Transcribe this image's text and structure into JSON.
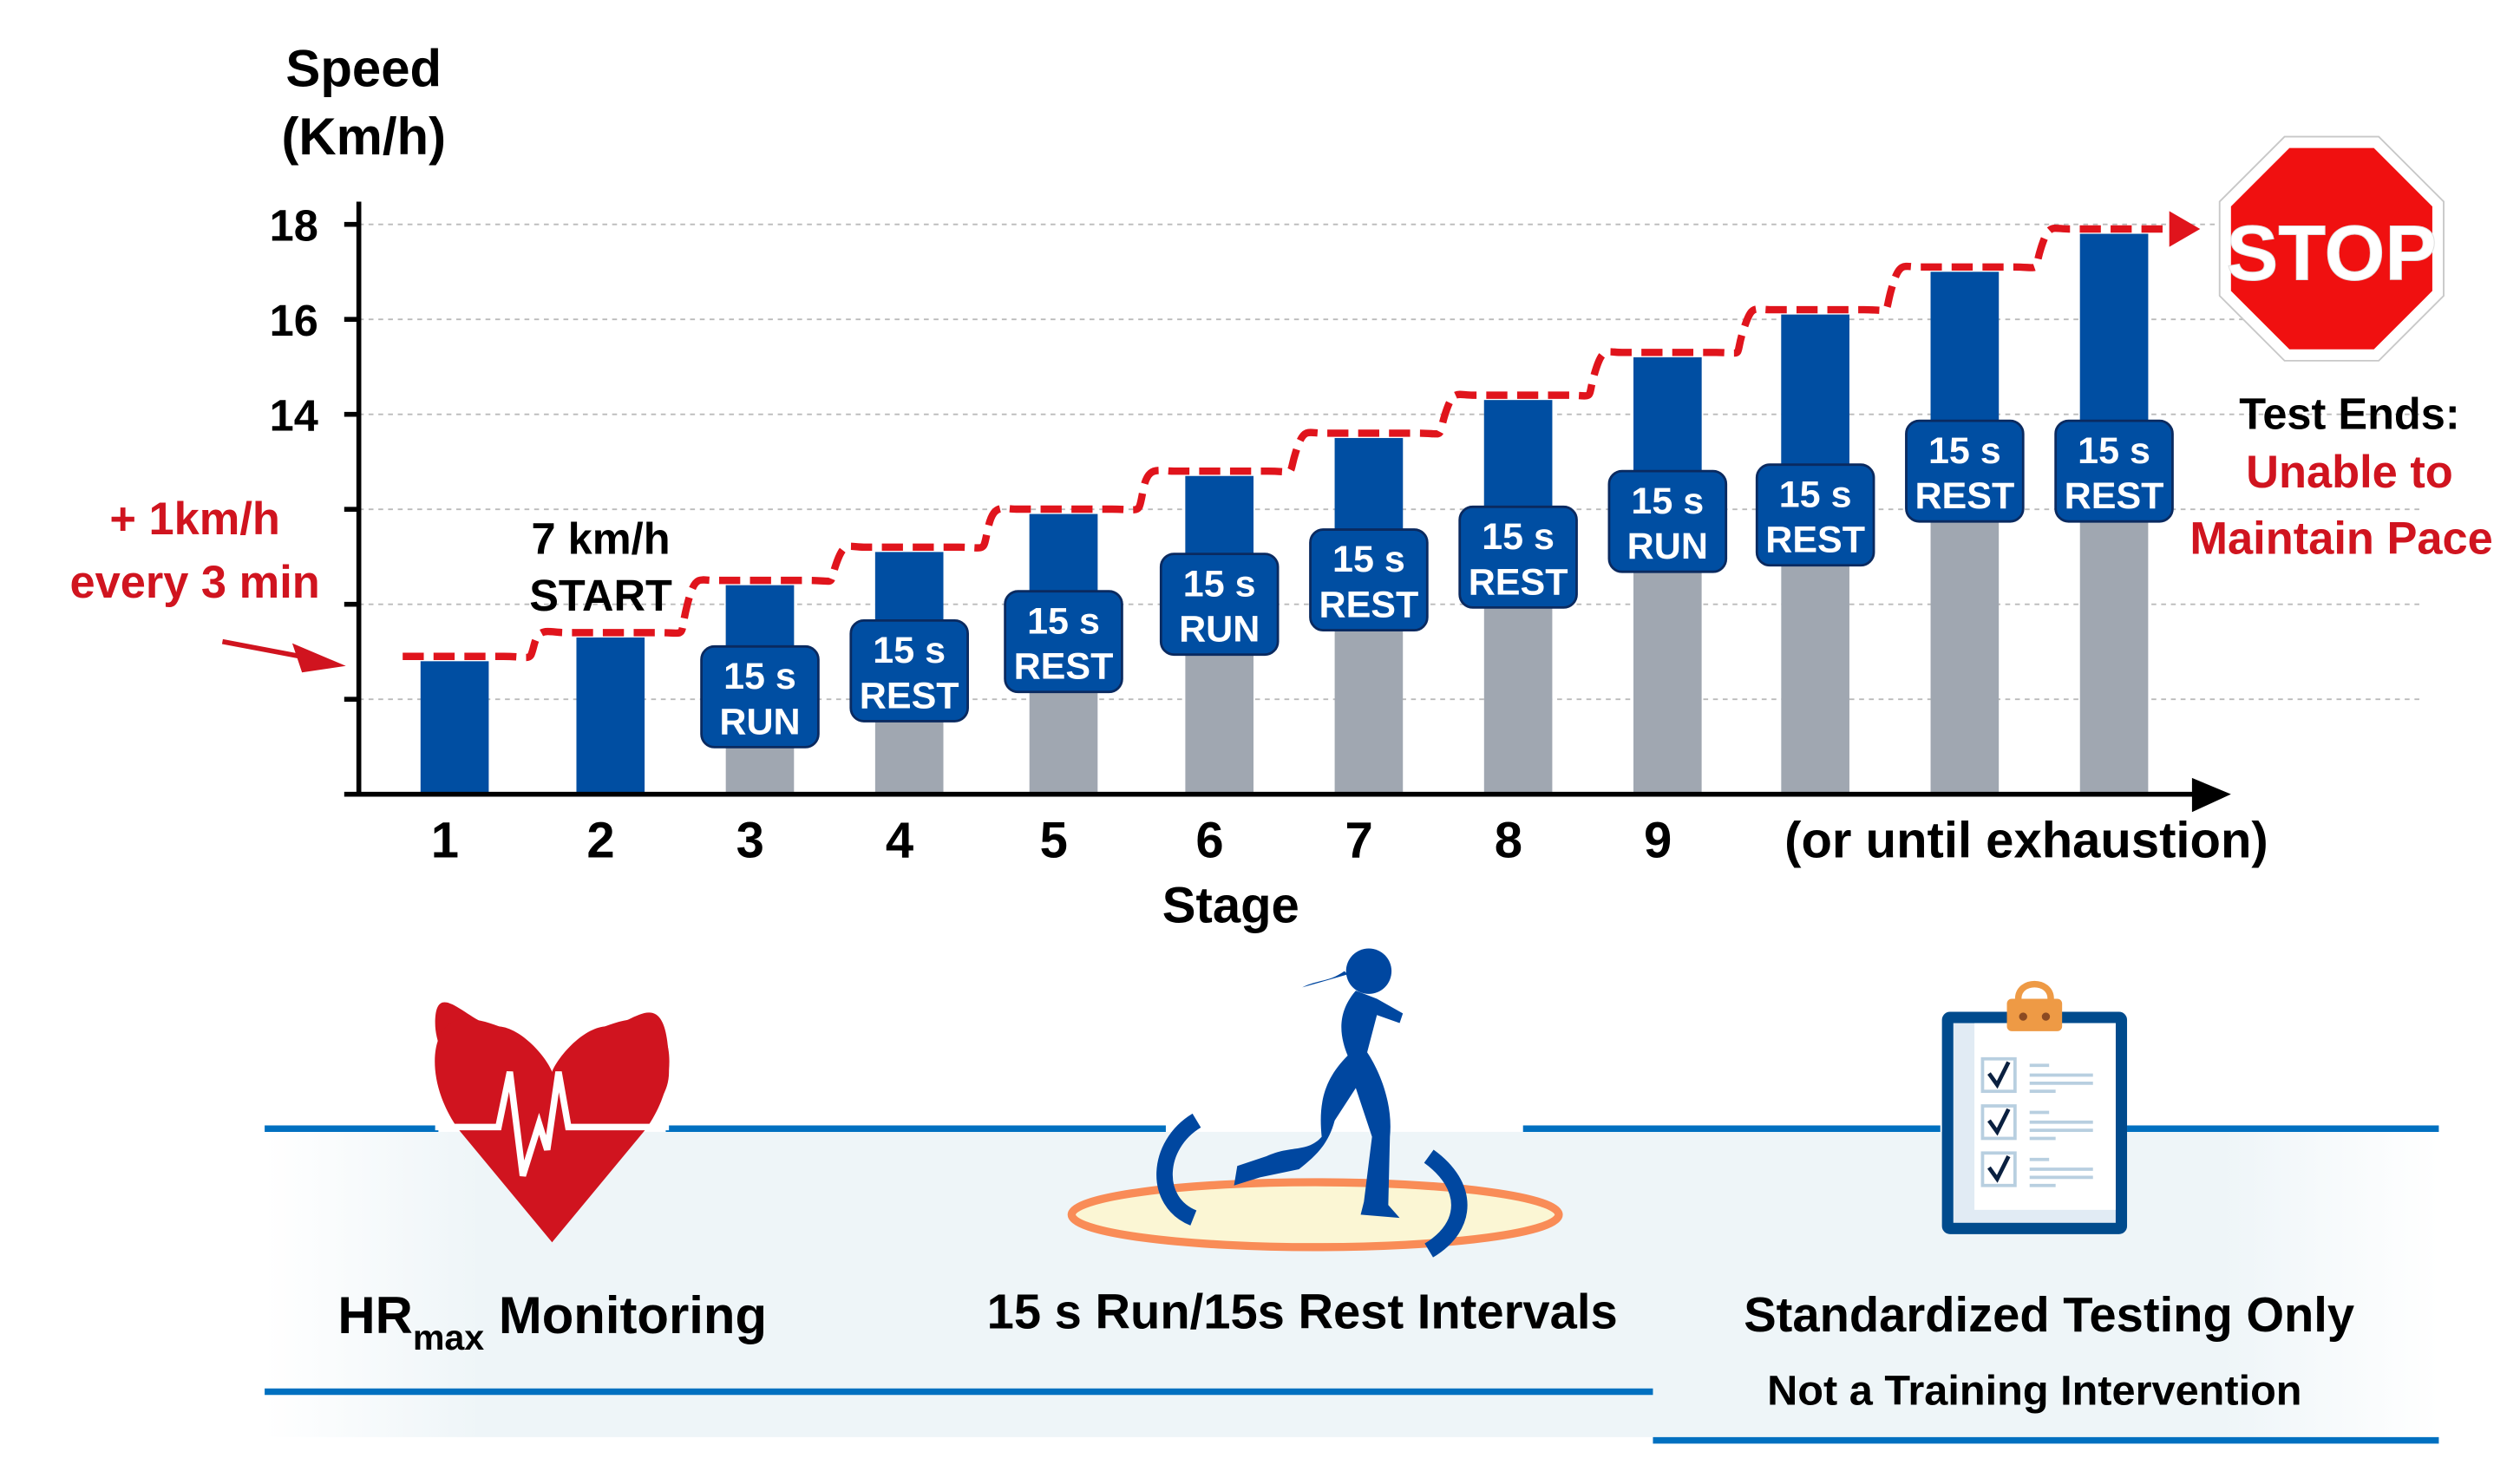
{
  "chart_data": {
    "type": "bar",
    "ylabel": [
      "Speed",
      "(Km/h)"
    ],
    "xlabel": "Stage",
    "ylim": [
      6,
      18
    ],
    "yticks": [
      8,
      10,
      12,
      14,
      16,
      18
    ],
    "ytick_labels": [
      "",
      "",
      "",
      "14",
      "16",
      "18"
    ],
    "grid": true,
    "categories": [
      "1",
      "2",
      "3",
      "4",
      "5",
      "6",
      "7",
      "8",
      "9",
      "",
      "",
      ""
    ],
    "x_tail_label": "(or until exhaustion)",
    "values": [
      8.8,
      9.3,
      10.4,
      11.1,
      11.9,
      12.7,
      13.5,
      14.3,
      15.2,
      16.1,
      17.0,
      17.8
    ],
    "interval_labels": [
      null,
      null,
      [
        "15 s",
        "RUN"
      ],
      [
        "15 s",
        "REST"
      ],
      [
        "15 s",
        "REST"
      ],
      [
        "15 s",
        "RUN"
      ],
      [
        "15 s",
        "REST"
      ],
      [
        "15 s",
        "REST"
      ],
      [
        "15 s",
        "RUN"
      ],
      [
        "15 s",
        "REST"
      ],
      [
        "15 s",
        "REST"
      ],
      [
        "15 s",
        "REST"
      ]
    ],
    "colors": {
      "run_bar": "#004ea2",
      "rest_bar": "#a0a7b1",
      "pace_line": "#e0141c",
      "label_box": "#004ea2"
    }
  },
  "annotations": {
    "increment": [
      "+ 1km/h",
      "every 3 min"
    ],
    "start": [
      "7 km/h",
      "START"
    ],
    "stop_sign": "STOP",
    "test_ends": "Test Ends:",
    "end_reason": [
      "Unable to",
      "Maintain Pace"
    ]
  },
  "footer": {
    "hr": {
      "main": "HR",
      "sub": "max",
      "rest": " Monitoring",
      "icon": "heart-ecg-icon"
    },
    "intervals": {
      "label": "15 s Run/15s Rest Intervals",
      "icon": "runner-icon"
    },
    "testing": {
      "label": "Standardized Testing Only",
      "sublabel": "Not a Training Intervention",
      "icon": "clipboard-checklist-icon"
    }
  },
  "colors": {
    "accent_red": "#d0141f",
    "line_blue": "#0070c0",
    "text": "#000000"
  }
}
